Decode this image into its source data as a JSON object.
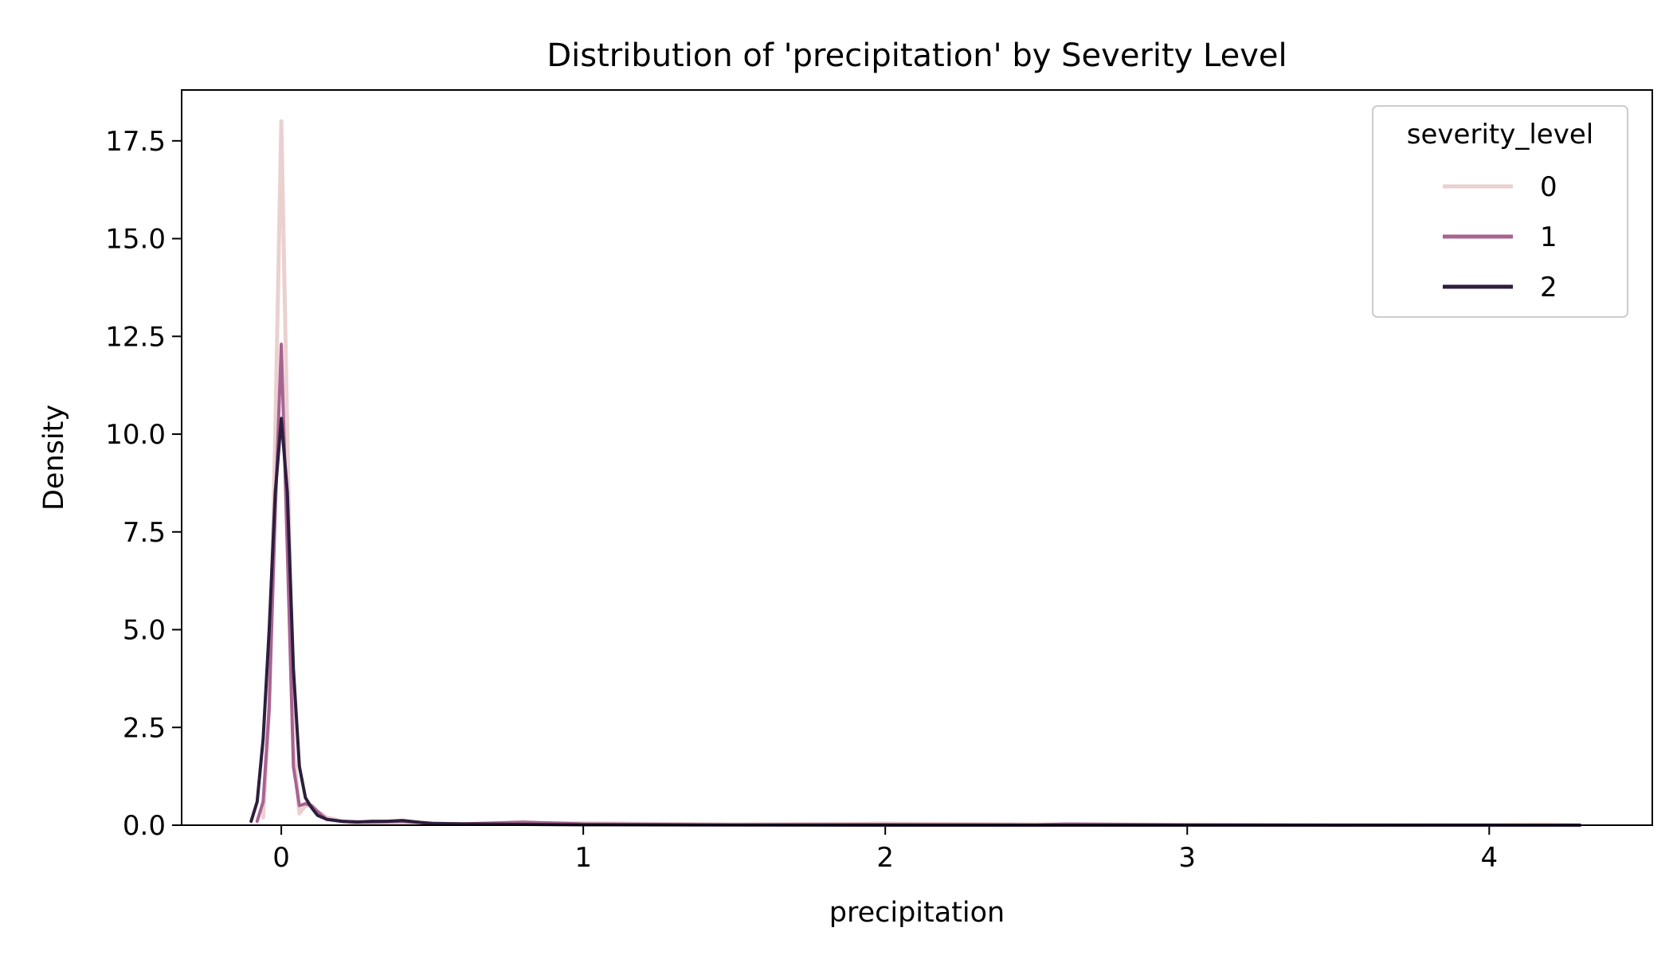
{
  "chart_data": {
    "type": "line",
    "title": "Distribution of 'precipitation' by Severity Level",
    "xlabel": "precipitation",
    "ylabel": "Density",
    "xlim": [
      -0.33,
      4.54
    ],
    "ylim": [
      0,
      18.8
    ],
    "x_ticks": [
      0,
      1,
      2,
      3,
      4
    ],
    "x_tick_labels": [
      "0",
      "1",
      "2",
      "3",
      "4"
    ],
    "y_ticks": [
      0,
      2.5,
      5,
      7.5,
      10,
      12.5,
      15,
      17.5
    ],
    "y_tick_labels": [
      "0.0",
      "2.5",
      "5.0",
      "7.5",
      "10.0",
      "12.5",
      "15.0",
      "17.5"
    ],
    "grid": false,
    "legend": {
      "title": "severity_level",
      "position": "top-right"
    },
    "series": [
      {
        "name": "0",
        "color": "#ebd0d0",
        "x": [
          -0.06,
          -0.04,
          -0.02,
          0.0,
          0.02,
          0.04,
          0.06,
          0.08,
          0.1,
          0.12,
          0.15,
          0.2,
          0.25,
          0.3,
          0.4,
          0.6,
          0.8,
          1.0,
          1.5,
          2.0,
          2.5,
          3.0,
          3.5,
          4.0,
          4.2,
          4.3
        ],
        "y": [
          0.2,
          3.0,
          10.0,
          18.0,
          10.0,
          2.0,
          0.3,
          0.5,
          0.5,
          0.35,
          0.2,
          0.1,
          0.06,
          0.04,
          0.03,
          0.03,
          0.05,
          0.05,
          0.02,
          0.04,
          0.02,
          0.01,
          0.0,
          0.01,
          0.02,
          0.0
        ]
      },
      {
        "name": "1",
        "color": "#a86391",
        "x": [
          -0.08,
          -0.06,
          -0.04,
          -0.02,
          0.0,
          0.02,
          0.04,
          0.06,
          0.08,
          0.1,
          0.12,
          0.15,
          0.2,
          0.3,
          0.4,
          0.5,
          0.6,
          0.8,
          1.0,
          1.5,
          2.0,
          2.5,
          2.6,
          3.0,
          4.0,
          4.3
        ],
        "y": [
          0.1,
          0.6,
          3.0,
          8.0,
          12.3,
          7.0,
          1.5,
          0.5,
          0.55,
          0.5,
          0.35,
          0.15,
          0.1,
          0.08,
          0.1,
          0.05,
          0.03,
          0.08,
          0.03,
          0.01,
          0.02,
          0.01,
          0.03,
          0.01,
          0.0,
          0.0
        ]
      },
      {
        "name": "2",
        "color": "#2d1e3e",
        "x": [
          -0.1,
          -0.08,
          -0.06,
          -0.04,
          -0.02,
          0.0,
          0.02,
          0.04,
          0.06,
          0.08,
          0.1,
          0.12,
          0.15,
          0.2,
          0.25,
          0.3,
          0.35,
          0.4,
          0.45,
          0.5,
          0.8,
          1.0,
          2.0,
          3.0,
          4.0,
          4.3
        ],
        "y": [
          0.1,
          0.6,
          2.2,
          5.0,
          8.5,
          10.4,
          8.5,
          4.0,
          1.5,
          0.7,
          0.45,
          0.25,
          0.15,
          0.1,
          0.08,
          0.1,
          0.1,
          0.12,
          0.08,
          0.04,
          0.02,
          0.01,
          0.0,
          0.0,
          0.0,
          0.0
        ]
      }
    ]
  }
}
